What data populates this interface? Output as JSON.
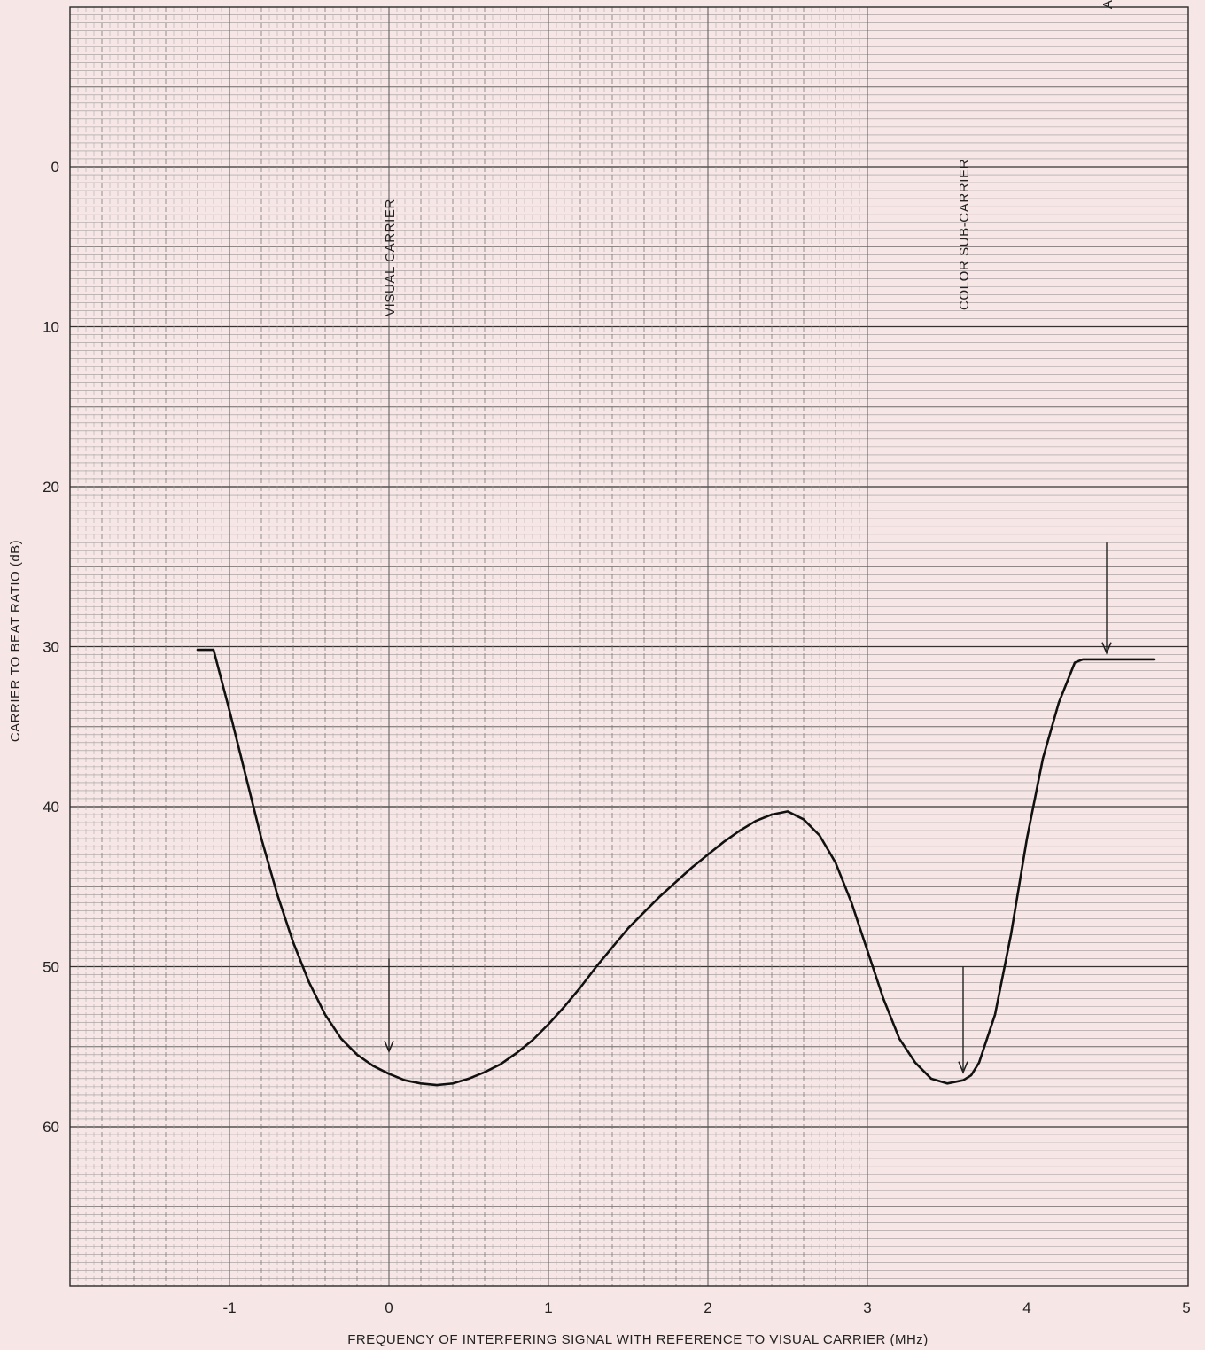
{
  "chart_data": {
    "type": "line",
    "title": "",
    "xlabel": "FREQUENCY OF INTERFERING SIGNAL WITH REFERENCE TO VISUAL CARRIER (MHz)",
    "ylabel": "CARRIER TO BEAT RATIO (dB)",
    "xlim": [
      -2,
      5
    ],
    "ylim": [
      -10,
      70
    ],
    "y_inverted": true,
    "grid": true,
    "x_ticks": [
      {
        "value": -1,
        "label": "-1"
      },
      {
        "value": 0,
        "label": "0"
      },
      {
        "value": 1,
        "label": "1"
      },
      {
        "value": 2,
        "label": "2"
      },
      {
        "value": 3,
        "label": "3"
      },
      {
        "value": 4,
        "label": "4"
      },
      {
        "value": 5,
        "label": "5"
      }
    ],
    "y_ticks": [
      {
        "value": 0,
        "label": "0"
      },
      {
        "value": 10,
        "label": "10"
      },
      {
        "value": 20,
        "label": "20"
      },
      {
        "value": 30,
        "label": "30"
      },
      {
        "value": 40,
        "label": "40"
      },
      {
        "value": 50,
        "label": "50"
      },
      {
        "value": 60,
        "label": "60"
      }
    ],
    "series": [
      {
        "color": "#111111",
        "x": [
          -1.2,
          -1.1,
          -1.0,
          -0.9,
          -0.8,
          -0.7,
          -0.6,
          -0.5,
          -0.4,
          -0.3,
          -0.2,
          -0.1,
          0.0,
          0.1,
          0.2,
          0.3,
          0.4,
          0.5,
          0.6,
          0.7,
          0.8,
          0.9,
          1.0,
          1.1,
          1.2,
          1.3,
          1.4,
          1.5,
          1.6,
          1.7,
          1.8,
          1.9,
          2.0,
          2.1,
          2.2,
          2.3,
          2.4,
          2.5,
          2.6,
          2.7,
          2.8,
          2.9,
          3.0,
          3.1,
          3.2,
          3.3,
          3.4,
          3.5,
          3.6,
          3.65,
          3.7,
          3.8,
          3.9,
          4.0,
          4.1,
          4.2,
          4.3,
          4.35,
          4.5,
          4.6,
          4.8
        ],
        "y": [
          30.2,
          30.2,
          34.0,
          38.0,
          42.0,
          45.5,
          48.5,
          51.0,
          53.0,
          54.5,
          55.5,
          56.2,
          56.7,
          57.1,
          57.3,
          57.4,
          57.3,
          57.0,
          56.6,
          56.1,
          55.4,
          54.6,
          53.6,
          52.5,
          51.3,
          50.0,
          48.8,
          47.6,
          46.6,
          45.6,
          44.7,
          43.8,
          43.0,
          42.2,
          41.5,
          40.9,
          40.5,
          40.3,
          40.8,
          41.8,
          43.5,
          46.0,
          49.0,
          52.0,
          54.5,
          56.0,
          57.0,
          57.3,
          57.1,
          56.8,
          56.0,
          53.0,
          48.0,
          42.0,
          37.0,
          33.5,
          31.0,
          30.8,
          30.8,
          30.8,
          30.8
        ]
      }
    ],
    "annotations": [
      {
        "text": "VISUAL CARRIER",
        "x": 0.0,
        "text_top_y": 2.0,
        "arrow_from_y": 49.5,
        "arrow_to_y": 55.3
      },
      {
        "text": "COLOR SUB-CARRIER",
        "x": 3.6,
        "text_top_y": -0.5,
        "arrow_from_y": 50.0,
        "arrow_to_y": 56.6
      },
      {
        "text": "AURAL CARRIER",
        "x": 4.5,
        "text_top_y": -17.0,
        "arrow_from_y": 23.5,
        "arrow_to_y": 30.4
      }
    ]
  }
}
